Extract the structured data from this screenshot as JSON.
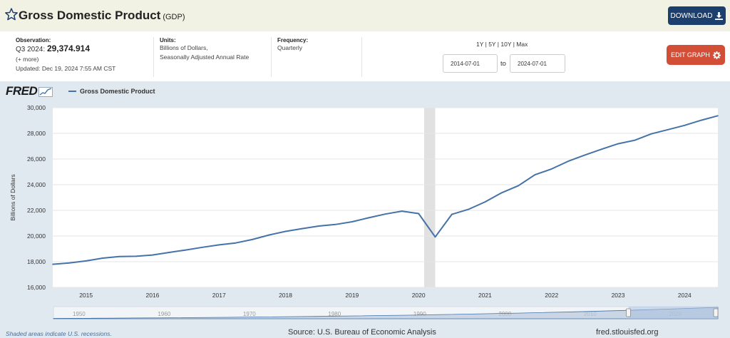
{
  "header": {
    "title": "Gross Domestic Product",
    "code": "(GDP)",
    "download_label": "DOWNLOAD"
  },
  "meta": {
    "observation_label": "Observation:",
    "observation_period": "Q3 2024:",
    "observation_value": "29,374.914",
    "more_link": "(+ more)",
    "updated_label": "Updated:",
    "updated_value": "Dec 19, 2024 7:55 AM CST",
    "units_label": "Units:",
    "units_line1": "Billions of Dollars,",
    "units_line2": "Seasonally Adjusted Annual Rate",
    "frequency_label": "Frequency:",
    "frequency_value": "Quarterly"
  },
  "controls": {
    "periods": [
      "1Y",
      "5Y",
      "10Y",
      "Max"
    ],
    "start_date": "2014-07-01",
    "to_label": "to",
    "end_date": "2024-07-01",
    "edit_label": "EDIT GRAPH"
  },
  "colors": {
    "series": "#4572a7",
    "edit_button": "#d24e37",
    "download_button": "#1d3f6e",
    "graph_background": "#e1e9f0",
    "recession": "#e1e1e1"
  },
  "icons": [
    "star-icon",
    "download-icon",
    "gear-icon",
    "fred-sparkline-icon"
  ],
  "logo_text": "FRED",
  "chart_data": {
    "type": "line",
    "title": "",
    "xlabel": "",
    "ylabel": "Billions of Dollars",
    "xlim": [
      2014.5,
      2024.5
    ],
    "ylim": [
      16000,
      30000
    ],
    "y_ticks": [
      16000,
      18000,
      20000,
      22000,
      24000,
      26000,
      28000,
      30000
    ],
    "y_tick_labels": [
      "16,000",
      "18,000",
      "20,000",
      "22,000",
      "24,000",
      "26,000",
      "28,000",
      "30,000"
    ],
    "x_ticks": [
      2015,
      2016,
      2017,
      2018,
      2019,
      2020,
      2021,
      2022,
      2023,
      2024
    ],
    "x_tick_labels": [
      "2015",
      "2016",
      "2017",
      "2018",
      "2019",
      "2020",
      "2021",
      "2022",
      "2023",
      "2024"
    ],
    "grid": true,
    "legend": "top-left",
    "recessions": [
      {
        "start": 2020.0833,
        "end": 2020.25
      }
    ],
    "series": [
      {
        "name": "Gross Domestic Product",
        "x": [
          2014.5,
          2014.75,
          2015.0,
          2015.25,
          2015.5,
          2015.75,
          2016.0,
          2016.25,
          2016.5,
          2016.75,
          2017.0,
          2017.25,
          2017.5,
          2017.75,
          2018.0,
          2018.25,
          2018.5,
          2018.75,
          2019.0,
          2019.25,
          2019.5,
          2019.75,
          2020.0,
          2020.25,
          2020.5,
          2020.75,
          2021.0,
          2021.25,
          2021.5,
          2021.75,
          2022.0,
          2022.25,
          2022.5,
          2022.75,
          2023.0,
          2023.25,
          2023.5,
          2023.75,
          2024.0,
          2024.25,
          2024.5
        ],
        "values": [
          17800,
          17900,
          18060,
          18280,
          18400,
          18420,
          18520,
          18720,
          18910,
          19120,
          19310,
          19460,
          19730,
          20080,
          20360,
          20580,
          20780,
          20900,
          21110,
          21420,
          21710,
          21940,
          21750,
          19930,
          21690,
          22080,
          22660,
          23370,
          23920,
          24770,
          25230,
          25830,
          26310,
          26760,
          27190,
          27460,
          27960,
          28290,
          28620,
          29020,
          29370
        ]
      }
    ],
    "navigator": {
      "tick_labels": [
        "1950",
        "1960",
        "1970",
        "1980",
        "1990",
        "2000",
        "2010",
        "2020"
      ],
      "range": [
        1947,
        2025
      ]
    }
  },
  "footer": {
    "recession_note": "Shaded areas indicate U.S. recessions.",
    "source": "Source: U.S. Bureau of Economic Analysis",
    "site": "fred.stlouisfed.org"
  }
}
